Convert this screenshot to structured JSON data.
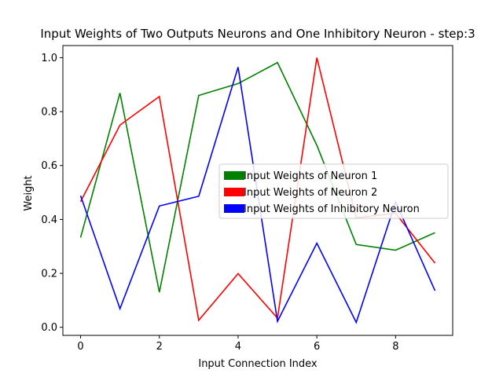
{
  "chart_data": {
    "type": "line",
    "title": "Input Weights of Two Outputs Neurons and One Inhibitory Neuron - step:3",
    "xlabel": "Input Connection Index",
    "ylabel": "Weight",
    "x": [
      0,
      1,
      2,
      3,
      4,
      5,
      6,
      7,
      8,
      9
    ],
    "xlim": [
      -0.45,
      9.45
    ],
    "ylim": [
      -0.03,
      1.045
    ],
    "xticks": [
      0,
      2,
      4,
      6,
      8
    ],
    "yticks": [
      0.0,
      0.2,
      0.4,
      0.6,
      0.8,
      1.0
    ],
    "xtick_labels": [
      "0",
      "2",
      "4",
      "6",
      "8"
    ],
    "ytick_labels": [
      "0.0",
      "0.2",
      "0.4",
      "0.6",
      "0.8",
      "1.0"
    ],
    "grid": false,
    "legend_position": "center-right",
    "series": [
      {
        "name": "Input Weights of Neuron 1",
        "color": "#008000",
        "values": [
          0.333,
          0.869,
          0.13,
          0.86,
          0.904,
          0.982,
          0.675,
          0.307,
          0.286,
          0.351
        ]
      },
      {
        "name": "Input Weights of Neuron 2",
        "color": "#ff0000",
        "values": [
          0.466,
          0.75,
          0.856,
          0.026,
          0.199,
          0.034,
          1.0,
          0.406,
          0.423,
          0.238
        ]
      },
      {
        "name": "Input Weights of Inhibitory Neuron",
        "color": "#0000ff",
        "values": [
          0.488,
          0.069,
          0.45,
          0.486,
          0.965,
          0.022,
          0.312,
          0.018,
          0.465,
          0.136
        ]
      }
    ]
  }
}
